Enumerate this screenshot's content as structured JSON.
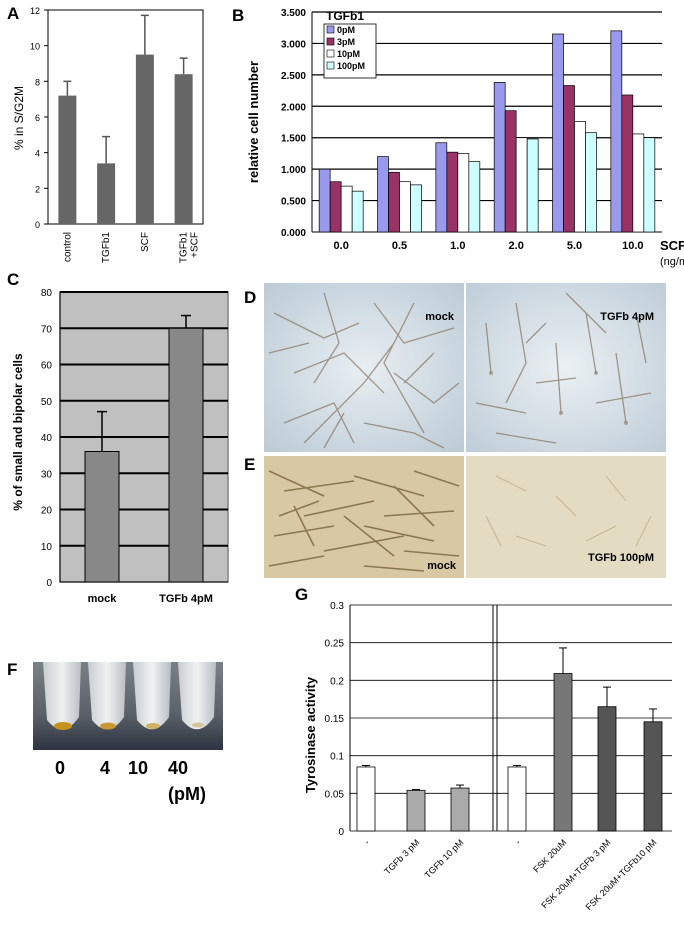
{
  "panels": {
    "a": "A",
    "b": "B",
    "c": "C",
    "d": "D",
    "e": "E",
    "f": "F",
    "g": "G"
  },
  "chart_data": [
    {
      "id": "A",
      "type": "bar",
      "categories": [
        "control",
        "TGFb1",
        "SCF",
        "TGFb1\n+SCF"
      ],
      "values": [
        7.2,
        3.4,
        9.5,
        8.4
      ],
      "errors": [
        0.8,
        1.5,
        2.2,
        0.9
      ],
      "ylabel": "% in S/G2M",
      "xlabel": "",
      "ylim": [
        0,
        12
      ],
      "yticks": [
        "0",
        "2",
        "4",
        "6",
        "8",
        "10",
        "12"
      ],
      "grid": false,
      "colors": {
        "bar": "#666666"
      }
    },
    {
      "id": "B",
      "type": "bar",
      "categories": [
        "0.0",
        "0.5",
        "1.0",
        "2.0",
        "5.0",
        "10.0"
      ],
      "series": [
        {
          "name": "0pM",
          "values": [
            1.0,
            1.2,
            1.42,
            2.38,
            3.15,
            3.2
          ],
          "color": "#9999ee"
        },
        {
          "name": "3pM",
          "values": [
            0.8,
            0.95,
            1.27,
            1.93,
            2.33,
            2.18
          ],
          "color": "#993366"
        },
        {
          "name": "10pM",
          "values": [
            0.73,
            0.8,
            1.25,
            1.5,
            1.76,
            1.56
          ],
          "color": "#ffffff"
        },
        {
          "name": "100pM",
          "values": [
            0.65,
            0.75,
            1.12,
            1.48,
            1.58,
            1.5
          ],
          "color": "#ccffff"
        }
      ],
      "legend_title": "TGFb1",
      "legend_placement": "top-left",
      "ylabel": "relative cell number",
      "xlabel": "SCF",
      "xunit": "(ng/ml)",
      "ylim": [
        0,
        3.5
      ],
      "yticks": [
        "0.000",
        "0.500",
        "1.000",
        "1.500",
        "2.000",
        "2.500",
        "3.000",
        "3.500"
      ],
      "grid": true
    },
    {
      "id": "C",
      "type": "bar",
      "categories": [
        "mock",
        "TGFb 4pM"
      ],
      "values": [
        36,
        70
      ],
      "errors": [
        11,
        3.5
      ],
      "ylabel": "% of small and  bipolar cells",
      "xlabel": "",
      "ylim": [
        0,
        80
      ],
      "yticks": [
        "0",
        "10",
        "20",
        "30",
        "40",
        "50",
        "60",
        "70",
        "80"
      ],
      "grid": true,
      "colors": {
        "bar": "#888888",
        "plot_bg": "#c0c0c0"
      }
    },
    {
      "id": "G",
      "type": "bar",
      "categories": [
        "-",
        "TGFb 3 pM",
        "TGFb 10 pM",
        "-",
        "FSK 20uM",
        "FSK 20uM+TGFb 3 pM",
        "FSK 20uM+TGFb10 pM"
      ],
      "values": [
        0.085,
        0.054,
        0.057,
        0.085,
        0.209,
        0.165,
        0.145
      ],
      "errors": [
        0.002,
        0.001,
        0.004,
        0.002,
        0.034,
        0.026,
        0.017
      ],
      "ylabel": "Tyrosinase activity",
      "xlabel": "",
      "ylim": [
        0,
        0.3
      ],
      "yticks": [
        "0",
        "0.05",
        "0.1",
        "0.15",
        "0.2",
        "0.25",
        "0.3"
      ],
      "grid": true,
      "colors": {
        "white": "#ffffff",
        "light": "#aaaaaa",
        "mid": "#777777",
        "dark": "#555555"
      },
      "bar_colors": [
        "#ffffff",
        "#aaaaaa",
        "#aaaaaa",
        "#ffffff",
        "#777777",
        "#555555",
        "#555555"
      ]
    }
  ],
  "photos": {
    "d_left": "mock",
    "d_right": "TGFb 4pM",
    "e_left": "mock",
    "e_right": "TGFb 100pM"
  },
  "tubes": {
    "labels": [
      "0",
      "4",
      "10",
      "40"
    ],
    "unit": "(pM)"
  }
}
